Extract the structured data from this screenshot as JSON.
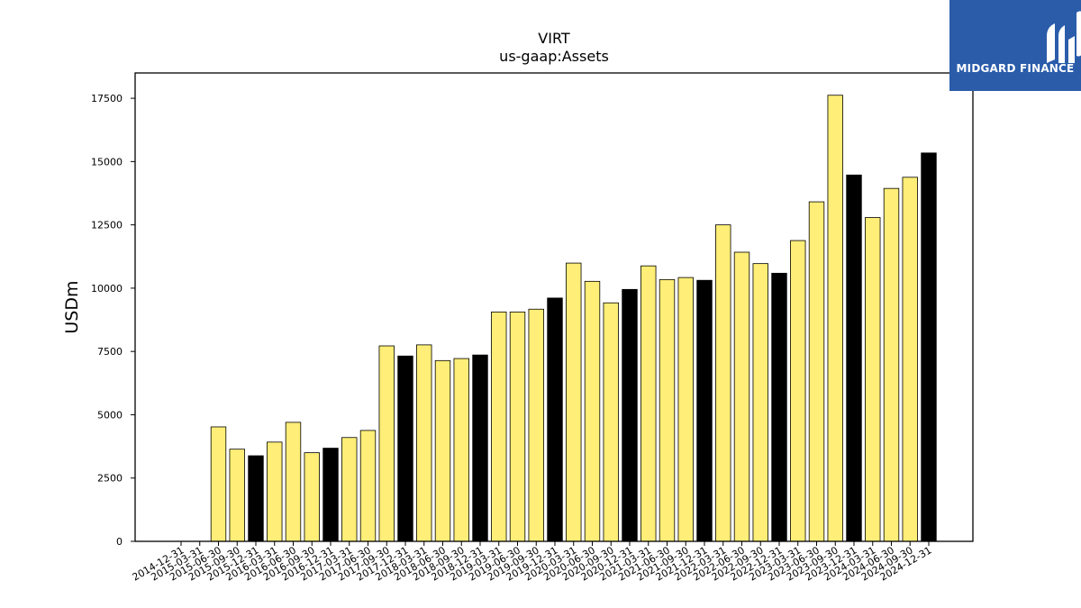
{
  "chart_data": {
    "type": "bar",
    "title": "VIRT",
    "subtitle": "us-gaap:Assets",
    "xlabel": "",
    "ylabel": "USDm",
    "ylim": [
      0,
      18500
    ],
    "yticks": [
      0,
      2500,
      5000,
      7500,
      10000,
      12500,
      15000,
      17500
    ],
    "grid": false,
    "colors": {
      "regular": "#ffee77",
      "fiscal_year_end": "#000000",
      "edge": "#000000"
    },
    "categories": [
      "2014-12-31",
      "2015-03-31",
      "2015-06-30",
      "2015-09-30",
      "2015-12-31",
      "2016-03-31",
      "2016-06-30",
      "2016-09-30",
      "2016-12-31",
      "2017-03-31",
      "2017-06-30",
      "2017-09-30",
      "2017-12-31",
      "2018-03-31",
      "2018-06-30",
      "2018-09-30",
      "2018-12-31",
      "2019-03-31",
      "2019-06-30",
      "2019-09-30",
      "2019-12-31",
      "2020-03-31",
      "2020-06-30",
      "2020-09-30",
      "2020-12-31",
      "2021-03-31",
      "2021-06-30",
      "2021-09-30",
      "2021-12-31",
      "2022-03-31",
      "2022-06-30",
      "2022-09-30",
      "2022-12-31",
      "2023-03-31",
      "2023-06-30",
      "2023-09-30",
      "2023-12-31",
      "2024-03-31",
      "2024-06-30",
      "2024-09-30",
      "2024-12-31"
    ],
    "values": [
      0,
      0,
      4520,
      3640,
      3380,
      3920,
      4700,
      3500,
      3680,
      4100,
      4380,
      7720,
      7320,
      7760,
      7140,
      7220,
      7360,
      9060,
      9060,
      9170,
      9610,
      10990,
      10270,
      9420,
      9950,
      10880,
      10340,
      10420,
      10310,
      12500,
      11420,
      10970,
      10590,
      11880,
      13410,
      17620,
      14470,
      12790,
      13940,
      14380,
      15340
    ],
    "highlighted": [
      false,
      false,
      false,
      false,
      true,
      false,
      false,
      false,
      true,
      false,
      false,
      false,
      true,
      false,
      false,
      false,
      true,
      false,
      false,
      false,
      true,
      false,
      false,
      false,
      true,
      false,
      false,
      false,
      true,
      false,
      false,
      false,
      true,
      false,
      false,
      false,
      true,
      false,
      false,
      false,
      true
    ]
  },
  "logo": {
    "text": "MIDGARD FINANCE",
    "icon": "midgard-logo-icon"
  }
}
